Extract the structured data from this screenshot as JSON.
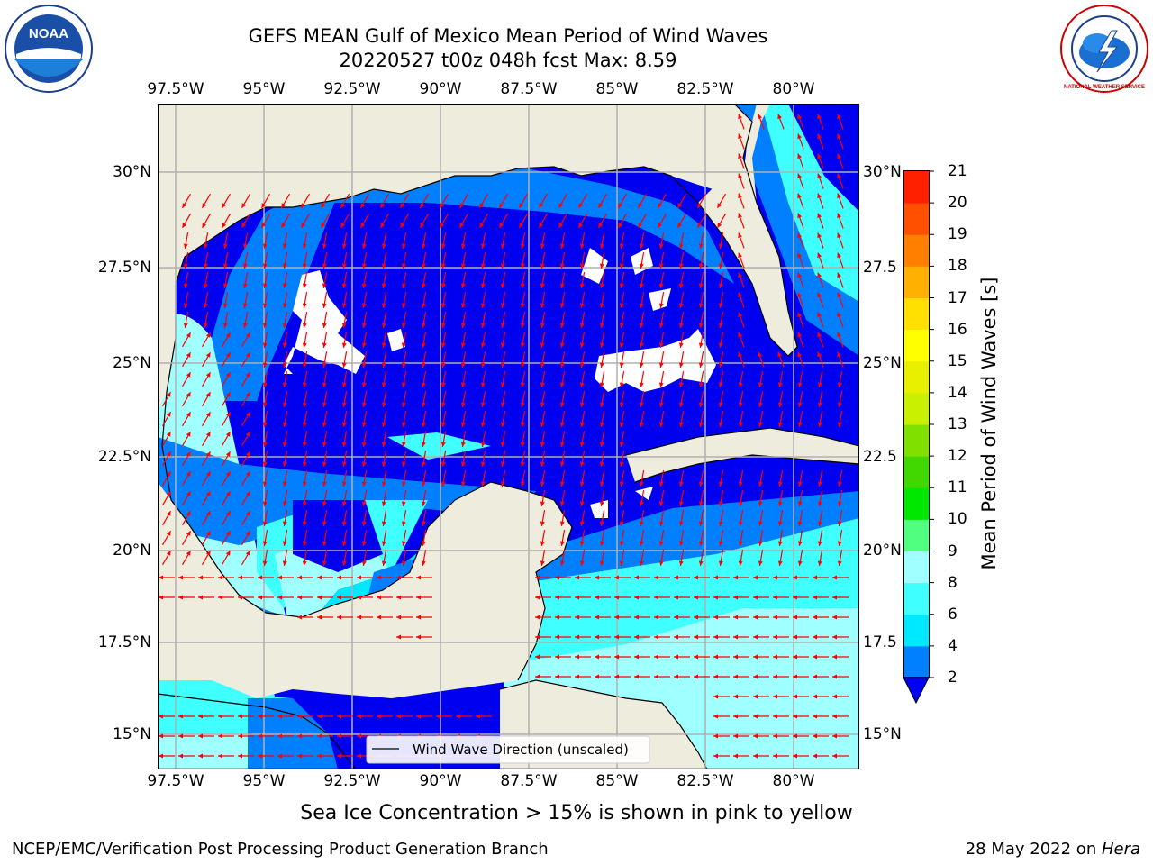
{
  "header": {
    "title_line1": "GEFS MEAN Gulf of Mexico Mean Period of Wind Waves",
    "title_line2": "20220527 t00z 048h fcst   Max: 8.59"
  },
  "logos": {
    "left": {
      "text": "NOAA",
      "ring_text": "NATIONAL OCEANIC AND ATMOSPHERIC ADMINISTRATION · U.S. DEPARTMENT OF COMMERCE"
    },
    "right": {
      "text": "NATIONAL WEATHER SERVICE"
    }
  },
  "map": {
    "lon_ticks": [
      "97.5°W",
      "95°W",
      "92.5°W",
      "90°W",
      "87.5°W",
      "85°W",
      "82.5°W",
      "80°W"
    ],
    "lat_ticks_left": [
      "30°N",
      "27.5°N",
      "25°N",
      "22.5°N",
      "20°N",
      "17.5°N",
      "15°N"
    ],
    "lat_ticks_right": [
      "30°N",
      "27.5",
      "25°N",
      "22.5",
      "20°N",
      "17.5",
      "15°N"
    ],
    "legend": "Wind Wave Direction (unscaled)",
    "colors": {
      "land": "#eeecdc",
      "ocean_deep": "#0000f0",
      "level_2": "#0080ff",
      "level_4": "#00e8ff",
      "level_6": "#40ffff",
      "level_8": "#a0ffff",
      "arrow": "#ff0000",
      "grid": "#b0b0b0"
    }
  },
  "colorbar": {
    "label": "Mean Period of Wind Waves [s]",
    "levels": [
      "2",
      "4",
      "6",
      "8",
      "9",
      "10",
      "11",
      "12",
      "13",
      "14",
      "15",
      "16",
      "17",
      "18",
      "19",
      "20",
      "21"
    ],
    "colors": [
      "#0080ff",
      "#00e8ff",
      "#40ffff",
      "#a0ffff",
      "#50ff80",
      "#00e800",
      "#40d800",
      "#80e000",
      "#c8f000",
      "#e8f000",
      "#ffff00",
      "#ffe000",
      "#ffb000",
      "#ff8000",
      "#ff5000",
      "#ff2000"
    ],
    "extend_color": "#0000f0"
  },
  "caption": "Sea Ice Concentration > 15% is shown in pink to yellow",
  "footer": {
    "left": "NCEP/EMC/Verification Post Processing Product Generation Branch",
    "right_date": "28 May 2022 on ",
    "right_host": "Hera"
  }
}
